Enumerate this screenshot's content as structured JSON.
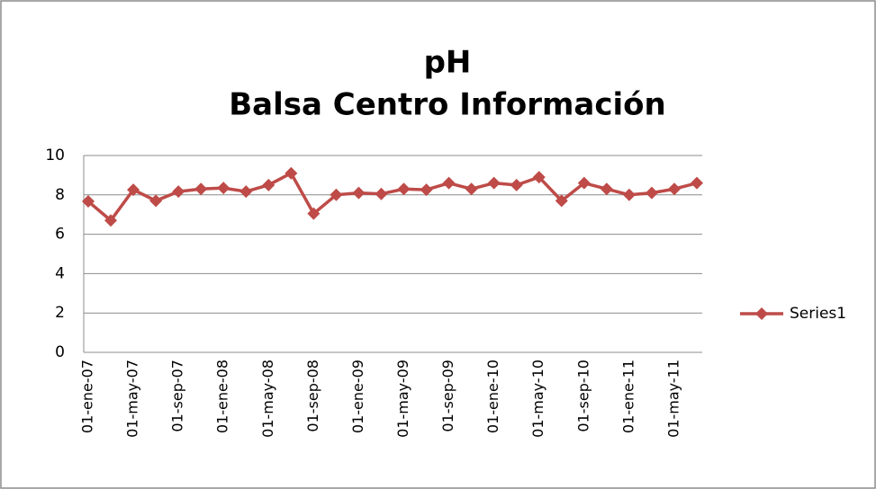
{
  "chart_data": {
    "type": "line",
    "title": "pH",
    "subtitle": "Balsa Centro Información",
    "categories": [
      "01-ene-07",
      null,
      "01-may-07",
      null,
      "01-sep-07",
      null,
      "01-ene-08",
      null,
      "01-may-08",
      null,
      "01-sep-08",
      null,
      "01-ene-09",
      null,
      "01-may-09",
      null,
      "01-sep-09",
      null,
      "01-ene-10",
      null,
      "01-may-10",
      null,
      "01-sep-10",
      null,
      "01-ene-11",
      null,
      "01-may-11",
      null
    ],
    "series": [
      {
        "name": "Series1",
        "color": "#be4b48",
        "values": [
          7.67,
          6.7,
          8.26,
          7.7,
          8.17,
          8.3,
          8.35,
          8.17,
          8.5,
          9.1,
          7.05,
          8.0,
          8.1,
          8.05,
          8.3,
          8.26,
          8.6,
          8.3,
          8.6,
          8.5,
          8.9,
          7.7,
          8.6,
          8.3,
          8.0,
          8.1,
          8.3,
          8.6
        ]
      }
    ],
    "ylim": [
      0,
      10
    ],
    "yticks": [
      0,
      2,
      4,
      6,
      8,
      10
    ],
    "grid": true,
    "legend": "right"
  }
}
